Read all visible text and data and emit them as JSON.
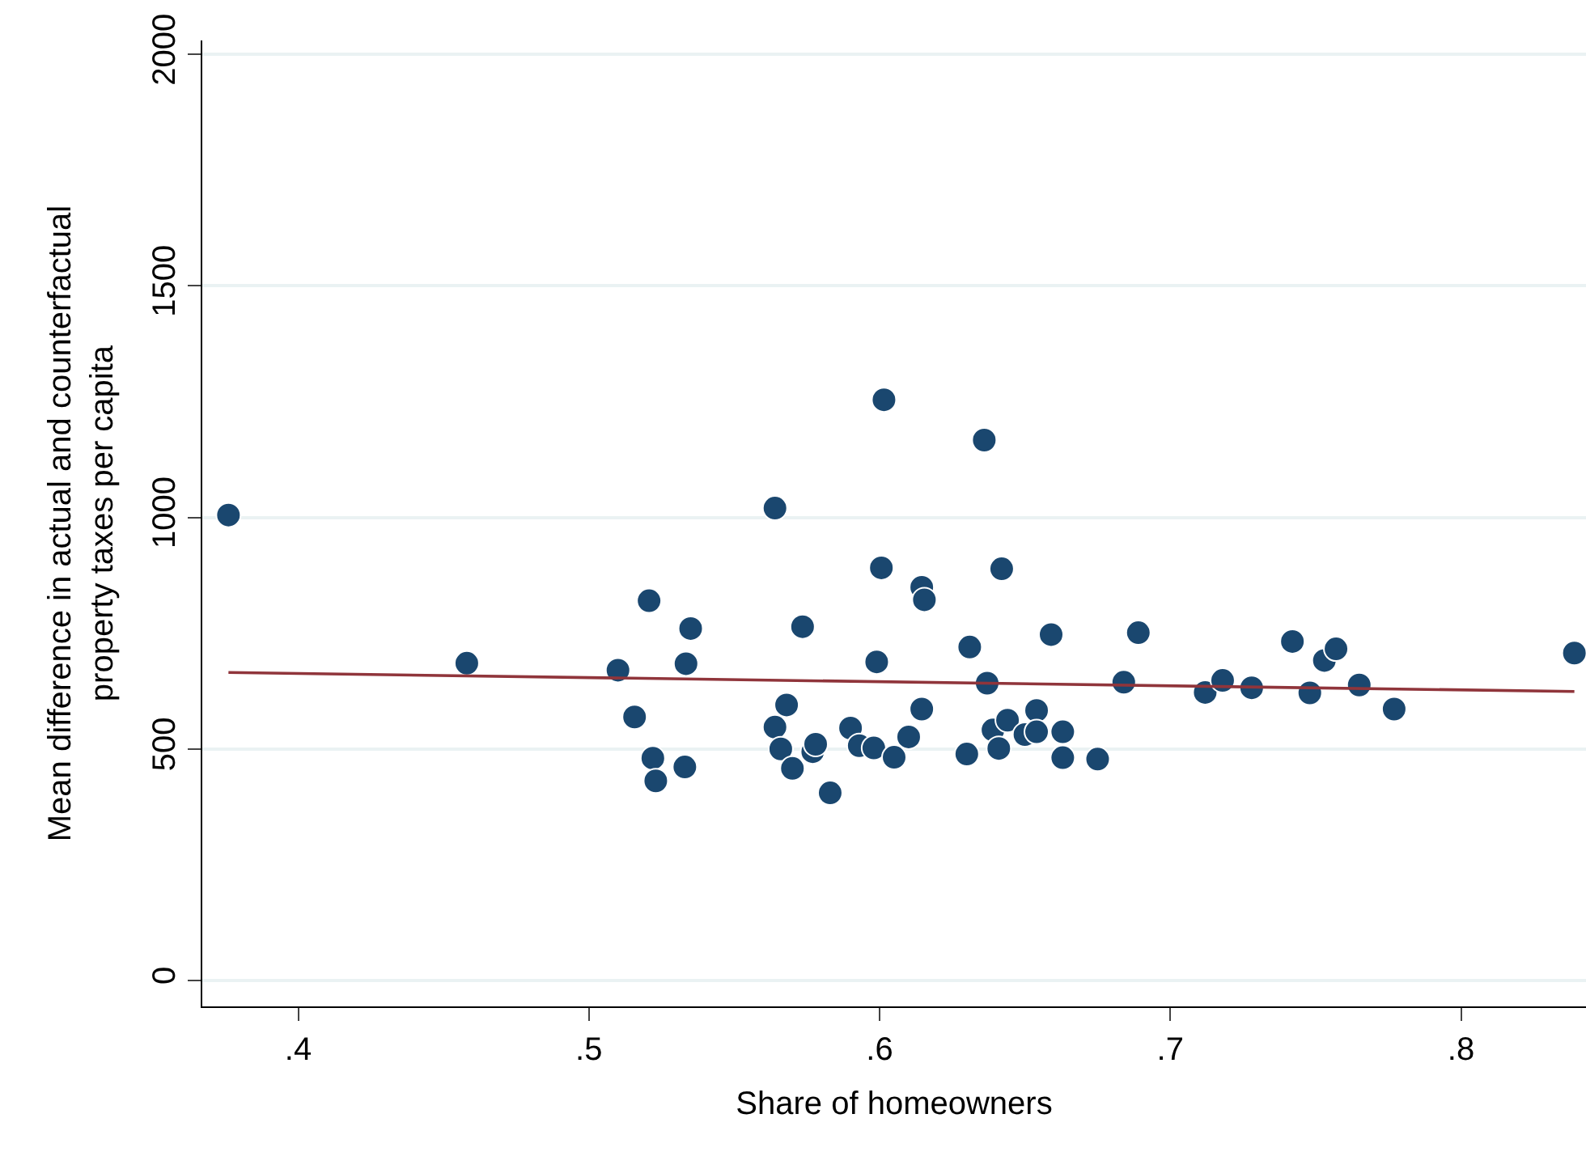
{
  "chart_data": {
    "type": "scatter",
    "xlabel": "Share of homeowners",
    "ylabel": "Mean difference in actual and counterfactual\nproperty taxes per capita",
    "xlim": [
      0.367,
      0.843
    ],
    "ylim": [
      -56,
      2030
    ],
    "xticks": [
      {
        "value": 0.4,
        "label": ".4"
      },
      {
        "value": 0.5,
        "label": ".5"
      },
      {
        "value": 0.6,
        "label": ".6"
      },
      {
        "value": 0.7,
        "label": ".7"
      },
      {
        "value": 0.8,
        "label": ".8"
      }
    ],
    "yticks": [
      0,
      500,
      1000,
      1500,
      2000
    ],
    "grid": "y",
    "marker": "circle",
    "series": [
      {
        "color": "#1a476f",
        "x": [
          0.376,
          0.458,
          0.51,
          0.5157,
          0.5207,
          0.522,
          0.523,
          0.5334,
          0.533,
          0.535,
          0.564,
          0.564,
          0.566,
          0.568,
          0.57,
          0.5735,
          0.577,
          0.578,
          0.583,
          0.59,
          0.593,
          0.598,
          0.599,
          0.6006,
          0.6015,
          0.605,
          0.61,
          0.6145,
          0.6154,
          0.6145,
          0.63,
          0.631,
          0.636,
          0.637,
          0.639,
          0.641,
          0.642,
          0.644,
          0.65,
          0.654,
          0.654,
          0.659,
          0.663,
          0.663,
          0.675,
          0.684,
          0.689,
          0.712,
          0.718,
          0.728,
          0.742,
          0.748,
          0.753,
          0.757,
          0.765,
          0.777,
          0.839
        ],
        "values": [
          1005,
          685,
          670,
          569,
          820,
          480,
          431,
          684,
          461,
          760,
          1020,
          547,
          500,
          595,
          458,
          764,
          494,
          510,
          405,
          545,
          507,
          502,
          688,
          891,
          1254,
          482,
          526,
          849,
          822,
          586,
          489,
          720,
          1167,
          642,
          541,
          501,
          889,
          562,
          531,
          583,
          537,
          747,
          537,
          481,
          478,
          644,
          751,
          622,
          648,
          632,
          732,
          621,
          691,
          716,
          638,
          586,
          707
        ]
      },
      {
        "type": "line",
        "color": "#90353b",
        "marker": "none",
        "x": [
          0.376,
          0.839
        ],
        "values": [
          665,
          624
        ]
      }
    ]
  }
}
